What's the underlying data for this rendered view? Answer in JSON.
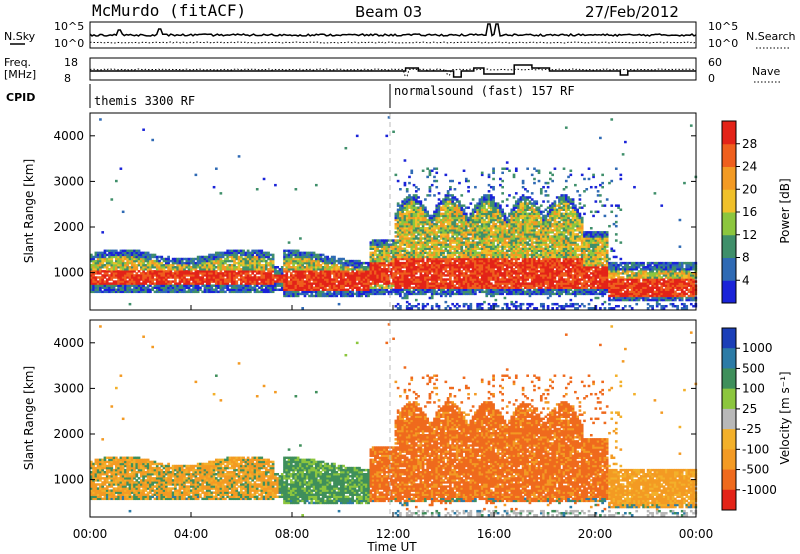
{
  "header": {
    "station": "McMurdo (fitACF)",
    "beam": "Beam 03",
    "date": "27/Feb/2012"
  },
  "strip_panels": {
    "nsky_label": "N.Sky",
    "nsky_ticks": [
      "10^5",
      "10^0"
    ],
    "nsearch_ticks": [
      "10^5",
      "10^0"
    ],
    "nsearch_label": "N.Search",
    "freq_label_line1": "Freq.",
    "freq_label_line2": "[MHz]",
    "freq_ticks": [
      "18",
      "8"
    ],
    "nave_ticks": [
      "60",
      "0"
    ],
    "nave_label": "Nave",
    "cpid_label": "CPID",
    "cpid_segments": [
      "themis 3300 RF",
      "normalsound (fast) 157 RF"
    ]
  },
  "x_axis": {
    "label": "Time UT",
    "ticks": [
      "00:00",
      "04:00",
      "08:00",
      "12:00",
      "16:00",
      "20:00",
      "00:00"
    ]
  },
  "power_panel": {
    "ylabel": "Slant Range [km]",
    "yticks": [
      "1000",
      "2000",
      "3000",
      "4000"
    ],
    "colorbar_label": "Power [dB]",
    "colorbar_ticks": [
      "4",
      "8",
      "12",
      "16",
      "20",
      "24",
      "28"
    ],
    "colors": [
      "#1a23d8",
      "#2f6ab4",
      "#3f8f6a",
      "#8cc63e",
      "#f0c02a",
      "#f39a23",
      "#ef5f1d",
      "#e32318"
    ]
  },
  "velocity_panel": {
    "ylabel": "Slant Range [km]",
    "yticks": [
      "1000",
      "2000",
      "3000",
      "4000"
    ],
    "colorbar_label": "Velocity [m s⁻¹]",
    "colorbar_ticks": [
      "1000",
      "500",
      "100",
      "25",
      "-25",
      "-100",
      "-500",
      "-1000"
    ],
    "colors": [
      "#1b3fb8",
      "#2c7ba6",
      "#3f8f5b",
      "#8cc63e",
      "#b8b8b8",
      "#f3b02a",
      "#f39a23",
      "#ef6a1d",
      "#e32318"
    ]
  },
  "chart_data": {
    "type": "heatmap",
    "x_range_hours": [
      0,
      24
    ],
    "power_db_range": [
      0,
      32
    ],
    "velocity_range": [
      -1000,
      1000
    ],
    "slant_range_km": [
      180,
      4500
    ],
    "description_series": [
      {
        "name": "Power",
        "unit": "dB"
      },
      {
        "name": "Velocity",
        "unit": "m s-1"
      }
    ]
  }
}
